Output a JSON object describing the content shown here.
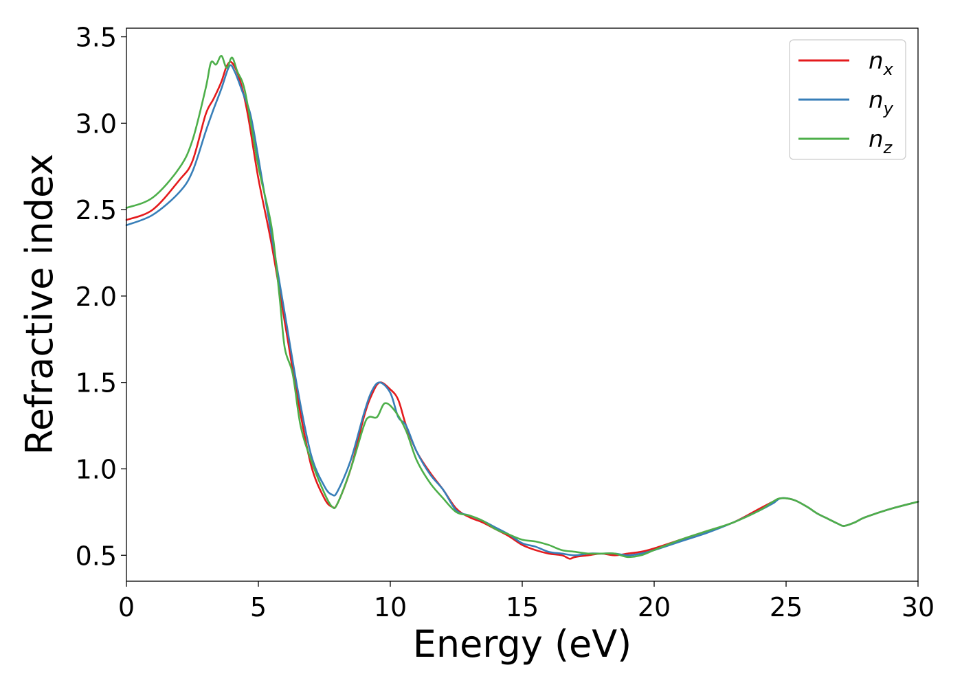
{
  "chart_data": {
    "type": "line",
    "title": "",
    "xlabel": "Energy (eV)",
    "ylabel": "Refractive index",
    "xlim": [
      0,
      30
    ],
    "ylim": [
      0.35,
      3.55
    ],
    "xticks": [
      0,
      5,
      10,
      15,
      20,
      25,
      30
    ],
    "xtick_labels": [
      "0",
      "5",
      "10",
      "15",
      "20",
      "25",
      "30"
    ],
    "yticks": [
      0.5,
      1.0,
      1.5,
      2.0,
      2.5,
      3.0,
      3.5
    ],
    "ytick_labels": [
      "0.5",
      "1.0",
      "1.5",
      "2.0",
      "2.5",
      "3.0",
      "3.5"
    ],
    "grid": false,
    "legend_position": "top-right",
    "series": [
      {
        "name": "n_x",
        "label_base": "n",
        "label_sub": "x",
        "color": "#e41a1c",
        "x": [
          0,
          1,
          2,
          2.5,
          3,
          3.3,
          3.6,
          3.8,
          4,
          4.3,
          4.6,
          5,
          5.5,
          6,
          6.5,
          7,
          7.5,
          7.8,
          8,
          8.5,
          9,
          9.3,
          9.6,
          10,
          10.3,
          10.6,
          11,
          11.5,
          12,
          12.5,
          13,
          13.5,
          14,
          14.5,
          15,
          15.5,
          16,
          16.5,
          16.8,
          17,
          17.5,
          18,
          18.5,
          19,
          19.5,
          20,
          21,
          22,
          23,
          24,
          24.5,
          24.8,
          25.3,
          25.8,
          26.2,
          26.6,
          27,
          27.2,
          27.6,
          28,
          29,
          30
        ],
        "y": [
          2.44,
          2.5,
          2.67,
          2.78,
          3.05,
          3.14,
          3.24,
          3.33,
          3.35,
          3.25,
          3.05,
          2.68,
          2.3,
          1.85,
          1.4,
          1.02,
          0.83,
          0.78,
          0.8,
          1.0,
          1.3,
          1.43,
          1.5,
          1.46,
          1.4,
          1.25,
          1.1,
          0.98,
          0.88,
          0.77,
          0.72,
          0.69,
          0.65,
          0.61,
          0.56,
          0.53,
          0.51,
          0.5,
          0.48,
          0.49,
          0.5,
          0.51,
          0.5,
          0.51,
          0.52,
          0.54,
          0.59,
          0.64,
          0.69,
          0.77,
          0.81,
          0.83,
          0.82,
          0.78,
          0.74,
          0.71,
          0.68,
          0.67,
          0.69,
          0.72,
          0.77,
          0.81
        ]
      },
      {
        "name": "n_y",
        "label_base": "n",
        "label_sub": "y",
        "color": "#377eb8",
        "x": [
          0,
          1,
          2,
          2.5,
          3,
          3.3,
          3.6,
          3.9,
          4.1,
          4.4,
          4.7,
          5,
          5.5,
          6,
          6.5,
          7,
          7.5,
          7.8,
          8,
          8.5,
          9,
          9.3,
          9.6,
          10,
          10.3,
          10.6,
          11,
          11.5,
          12,
          12.5,
          13,
          13.5,
          14,
          14.5,
          15,
          15.5,
          16,
          16.5,
          17,
          17.5,
          18,
          18.5,
          19,
          19.5,
          20,
          21,
          22,
          23,
          24,
          24.5,
          24.8,
          25.3,
          25.8,
          26.2,
          26.6,
          27,
          27.2,
          27.6,
          28,
          29,
          30
        ],
        "y": [
          2.41,
          2.47,
          2.6,
          2.72,
          2.95,
          3.08,
          3.2,
          3.33,
          3.3,
          3.18,
          3.05,
          2.8,
          2.35,
          1.9,
          1.45,
          1.08,
          0.9,
          0.85,
          0.87,
          1.05,
          1.32,
          1.45,
          1.5,
          1.44,
          1.3,
          1.25,
          1.1,
          0.97,
          0.88,
          0.76,
          0.73,
          0.7,
          0.66,
          0.62,
          0.57,
          0.55,
          0.52,
          0.51,
          0.5,
          0.51,
          0.51,
          0.51,
          0.5,
          0.51,
          0.53,
          0.58,
          0.63,
          0.69,
          0.76,
          0.8,
          0.83,
          0.82,
          0.78,
          0.74,
          0.71,
          0.68,
          0.67,
          0.69,
          0.72,
          0.77,
          0.81
        ]
      },
      {
        "name": "n_z",
        "label_base": "n",
        "label_sub": "z",
        "color": "#4daf4a",
        "x": [
          0,
          1,
          2,
          2.5,
          3,
          3.2,
          3.4,
          3.6,
          3.8,
          4.0,
          4.2,
          4.5,
          5,
          5.5,
          5.8,
          6,
          6.3,
          6.6,
          7,
          7.5,
          7.8,
          8,
          8.5,
          9,
          9.2,
          9.5,
          9.8,
          10.2,
          10.6,
          11,
          11.5,
          12,
          12.5,
          13,
          13.5,
          14,
          14.5,
          15,
          15.5,
          16,
          16.5,
          17,
          17.5,
          18,
          18.5,
          19,
          19.5,
          20,
          21,
          22,
          23,
          24,
          24.5,
          24.8,
          25.3,
          25.8,
          26.2,
          26.6,
          27,
          27.2,
          27.6,
          28,
          29,
          30
        ],
        "y": [
          2.51,
          2.57,
          2.74,
          2.9,
          3.2,
          3.35,
          3.34,
          3.39,
          3.32,
          3.38,
          3.3,
          3.18,
          2.75,
          2.4,
          2.0,
          1.7,
          1.55,
          1.25,
          1.05,
          0.86,
          0.78,
          0.8,
          1.0,
          1.25,
          1.3,
          1.3,
          1.38,
          1.33,
          1.22,
          1.05,
          0.92,
          0.83,
          0.75,
          0.73,
          0.7,
          0.65,
          0.62,
          0.59,
          0.58,
          0.56,
          0.53,
          0.52,
          0.51,
          0.51,
          0.51,
          0.49,
          0.5,
          0.53,
          0.59,
          0.64,
          0.69,
          0.76,
          0.81,
          0.83,
          0.82,
          0.78,
          0.74,
          0.71,
          0.68,
          0.67,
          0.69,
          0.72,
          0.77,
          0.81
        ]
      }
    ]
  }
}
